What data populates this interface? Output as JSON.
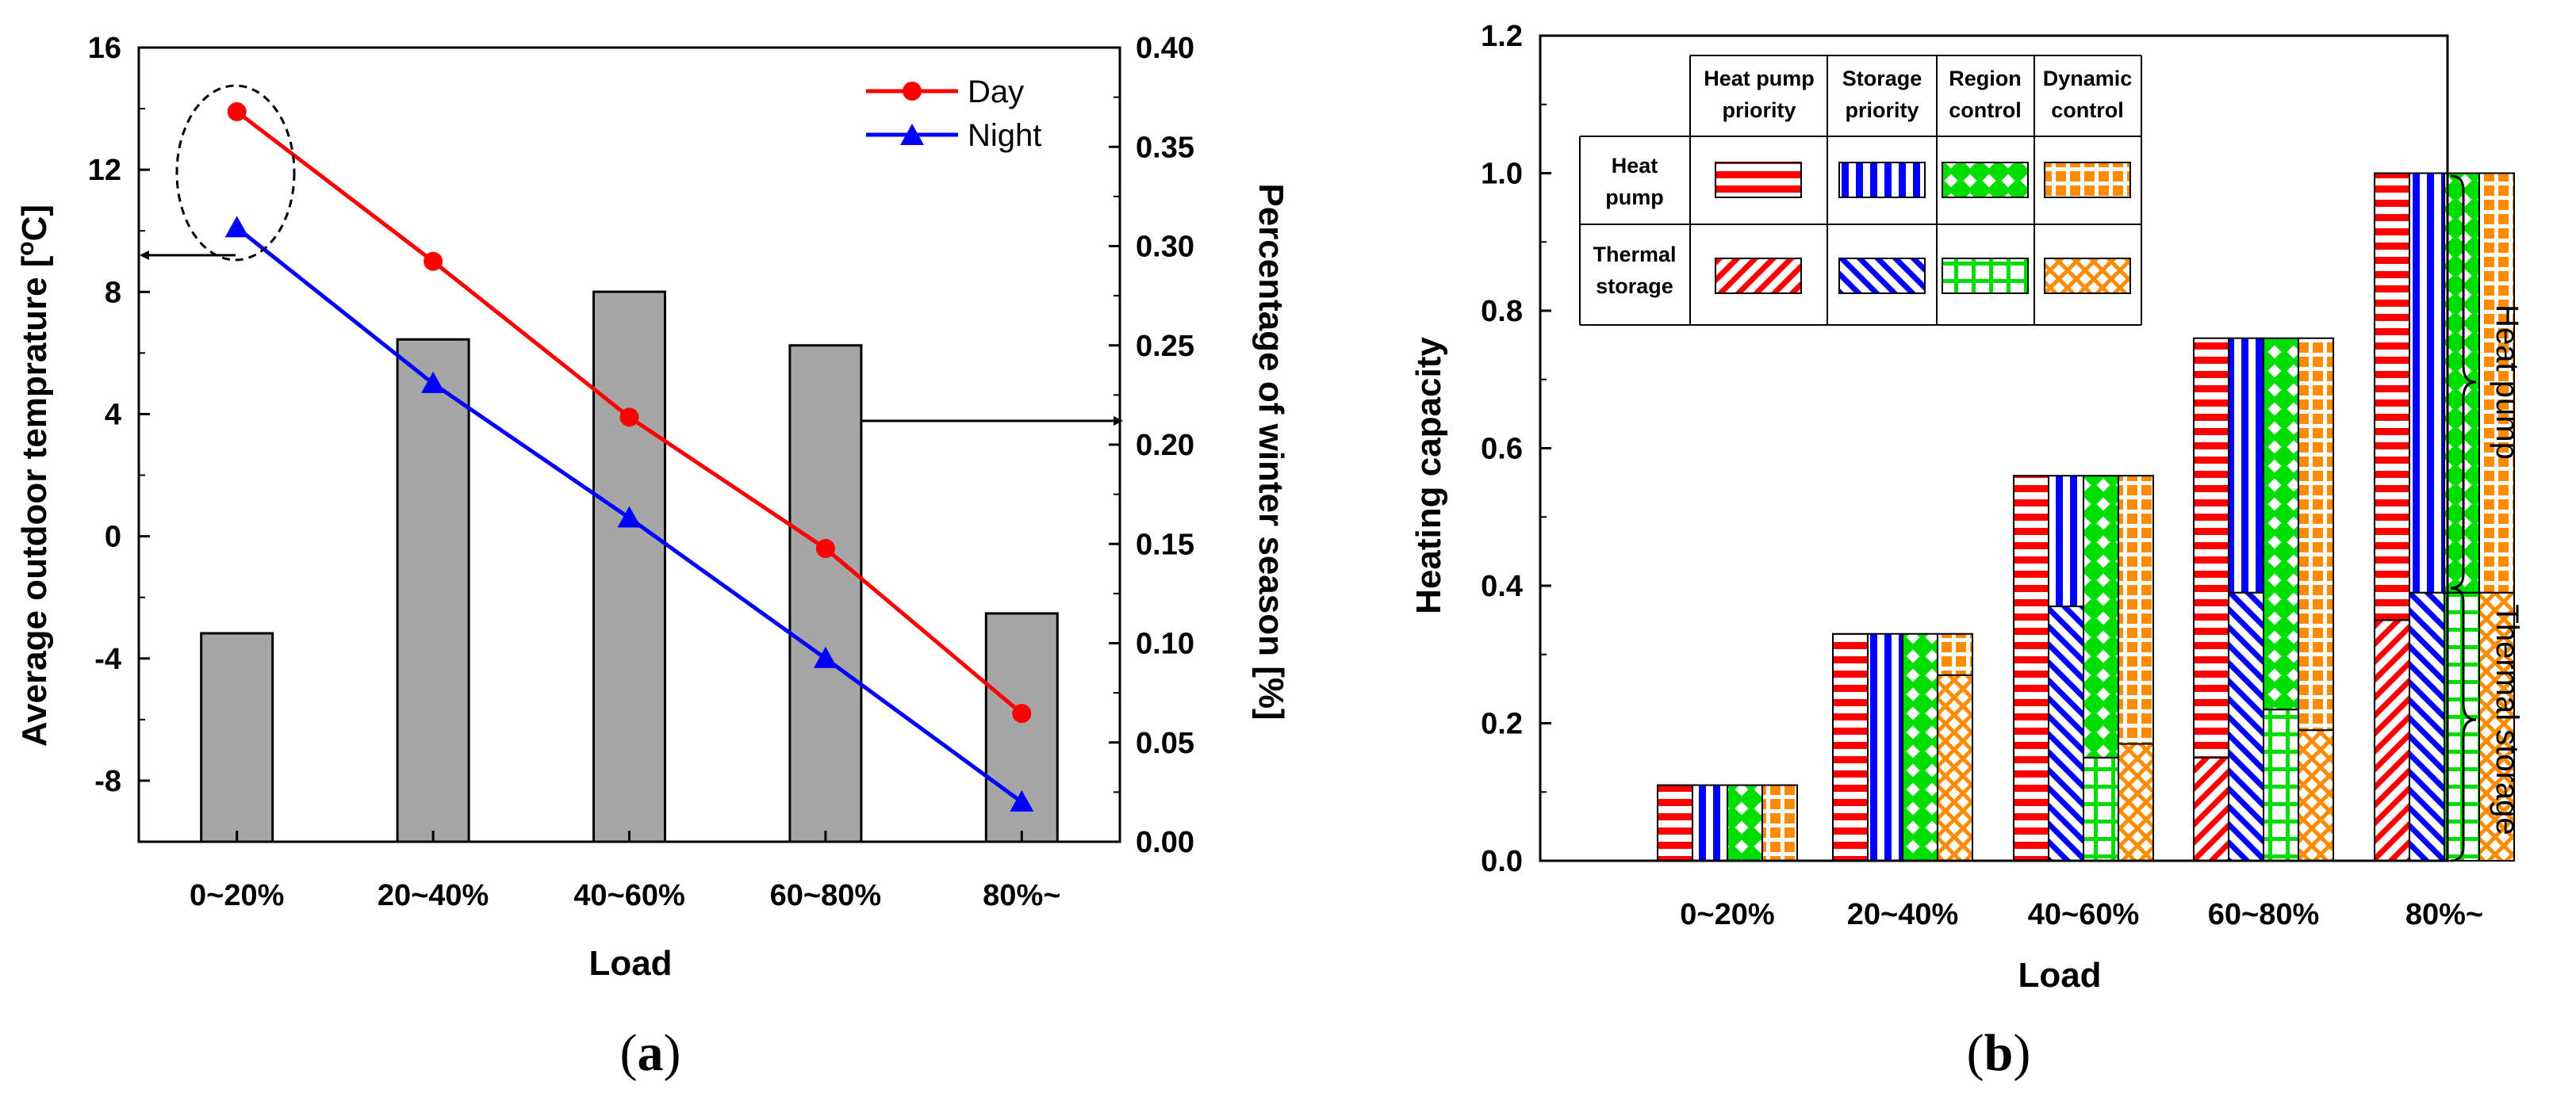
{
  "chart_data": [
    {
      "panel": "(a)",
      "type": "bar+line",
      "xlabel": "Load",
      "ylabel_left": "Average outdoor temprature [oC]",
      "ylabel_left_parts": [
        "Average outdoor temprature [",
        "o",
        "C]"
      ],
      "ylabel_right": "Percentage of winter season [%]",
      "categories": [
        "0~20%",
        "20~40%",
        "40~60%",
        "60~80%",
        "80%~"
      ],
      "left_axis": {
        "min": -10,
        "max": 16,
        "ticks": [
          "-8",
          "-4",
          "0",
          "4",
          "8",
          "12",
          "16"
        ],
        "tick_values": [
          -8,
          -4,
          0,
          4,
          8,
          12,
          16
        ]
      },
      "right_axis": {
        "min": 0,
        "max": 0.4,
        "ticks": [
          "0.00",
          "0.05",
          "0.10",
          "0.15",
          "0.20",
          "0.25",
          "0.30",
          "0.35",
          "0.40"
        ],
        "tick_values": [
          0,
          0.05,
          0.1,
          0.15,
          0.2,
          0.25,
          0.3,
          0.35,
          0.4
        ]
      },
      "bars": {
        "axis": "right",
        "values": [
          0.105,
          0.253,
          0.277,
          0.25,
          0.115
        ]
      },
      "series": [
        {
          "name": "Day",
          "axis": "left",
          "color": "#ff0000",
          "marker": "circle",
          "values": [
            13.9,
            9.0,
            3.9,
            -0.4,
            -5.8
          ]
        },
        {
          "name": "Night",
          "axis": "left",
          "color": "#0000ff",
          "marker": "triangle",
          "values": [
            10.1,
            5.0,
            0.6,
            -4.0,
            -8.7
          ]
        }
      ],
      "bar_color": "#a6a6a6"
    },
    {
      "panel": "(b)",
      "type": "stacked_bar",
      "xlabel": "Load",
      "ylabel": "Heating capacity",
      "ylim": [
        0,
        1.2
      ],
      "ticks": [
        "0.0",
        "0.2",
        "0.4",
        "0.6",
        "0.8",
        "1.0",
        "1.2"
      ],
      "tick_values": [
        0,
        0.2,
        0.4,
        0.6,
        0.8,
        1.0,
        1.2
      ],
      "categories": [
        "0~20%",
        "20~40%",
        "40~60%",
        "60~80%",
        "80%~"
      ],
      "strategies": [
        "Heat pump priority",
        "Storage priority",
        "Region control",
        "Dynamic control"
      ],
      "strategy_header_lines": [
        [
          "Heat pump",
          "priority"
        ],
        [
          "Storage",
          "priority"
        ],
        [
          "Region",
          "control"
        ],
        [
          "Dynamic",
          "control"
        ]
      ],
      "strategy_colors": [
        "#ff0000",
        "#0000ff",
        "#00dd00",
        "#ff8c00"
      ],
      "components": [
        "Heat pump",
        "Thermal storage"
      ],
      "component_row_lines": [
        [
          "Heat",
          "pump"
        ],
        [
          "Thermal",
          "storage"
        ]
      ],
      "series": [
        {
          "name": "Thermal storage",
          "values_by_strategy": [
            [
              0.0,
              0.0,
              0.0,
              0.0
            ],
            [
              0.0,
              0.0,
              0.0,
              0.27
            ],
            [
              0.0,
              0.37,
              0.15,
              0.17
            ],
            [
              0.15,
              0.39,
              0.22,
              0.19
            ],
            [
              0.35,
              0.39,
              0.39,
              0.39
            ]
          ]
        },
        {
          "name": "Heat pump",
          "values_by_strategy": [
            [
              0.11,
              0.11,
              0.11,
              0.11
            ],
            [
              0.33,
              0.33,
              0.33,
              0.06
            ],
            [
              0.56,
              0.19,
              0.41,
              0.39
            ],
            [
              0.61,
              0.37,
              0.54,
              0.57
            ],
            [
              0.65,
              0.61,
              0.61,
              0.61
            ]
          ]
        }
      ],
      "brace_labels": [
        "Heat pump",
        "Thermal storage"
      ]
    }
  ]
}
